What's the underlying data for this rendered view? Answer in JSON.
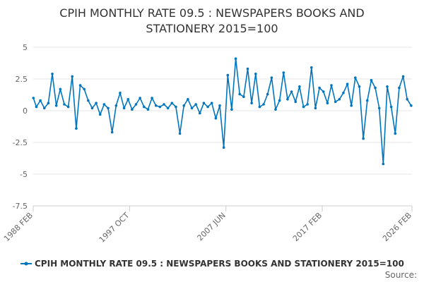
{
  "chart_data": {
    "type": "line",
    "title": "CPIH MONTHLY RATE 09.5 : NEWSPAPERS BOOKS AND STATIONERY 2015=100",
    "title_lines": [
      "CPIH MONTHLY RATE 09.5 : NEWSPAPERS BOOKS AND",
      "STATIONERY 2015=100"
    ],
    "xlabel": "",
    "ylabel": "",
    "ylim": [
      -7.5,
      5
    ],
    "yticks": [
      5,
      2.5,
      0,
      -2.5,
      -5,
      -7.5
    ],
    "ytick_labels": [
      "5",
      "2.5",
      "0",
      "-2.5",
      "-5",
      "-7.5"
    ],
    "xlim": [
      1988.0833,
      2026.0833
    ],
    "xticks": [
      {
        "label": "1988 FEB",
        "year": 1988.0833
      },
      {
        "label": "1997 OCT",
        "year": 1997.75
      },
      {
        "label": "2007 JUN",
        "year": 2007.4167
      },
      {
        "label": "2017 FEB",
        "year": 2017.0833
      },
      {
        "label": "2026 FEB",
        "year": 2026.0833
      }
    ],
    "grid": true,
    "legend_position": "bottom",
    "series": [
      {
        "name": "CPIH MONTHLY RATE 09.5 : NEWSPAPERS BOOKS AND STATIONERY 2015=100",
        "color": "#0075c0",
        "x": [
          1988.1,
          1988.4,
          1988.8,
          1989.2,
          1989.6,
          1990.0,
          1990.4,
          1990.8,
          1991.2,
          1991.6,
          1992.0,
          1992.4,
          1992.8,
          1993.2,
          1993.6,
          1994.0,
          1994.4,
          1994.8,
          1995.2,
          1995.6,
          1996.0,
          1996.4,
          1996.8,
          1997.2,
          1997.6,
          1998.0,
          1998.4,
          1998.8,
          1999.2,
          1999.6,
          2000.0,
          2000.4,
          2000.8,
          2001.2,
          2001.6,
          2002.0,
          2002.4,
          2002.8,
          2003.2,
          2003.6,
          2004.0,
          2004.4,
          2004.8,
          2005.2,
          2005.6,
          2006.0,
          2006.4,
          2006.8,
          2007.2,
          2007.6,
          2008.0,
          2008.4,
          2008.8,
          2009.2,
          2009.6,
          2010.0,
          2010.4,
          2010.8,
          2011.2,
          2011.6,
          2012.0,
          2012.4,
          2012.8,
          2013.2,
          2013.6,
          2014.0,
          2014.4,
          2014.8,
          2015.2,
          2015.6,
          2016.0,
          2016.4,
          2016.8,
          2017.2,
          2017.6,
          2018.0,
          2018.4,
          2018.8,
          2019.2,
          2019.6,
          2020.0,
          2020.4,
          2020.8,
          2021.2,
          2021.6,
          2022.0,
          2022.4,
          2022.8,
          2023.2,
          2023.6,
          2024.0,
          2024.4,
          2024.8,
          2025.2,
          2025.6,
          2026.0
        ],
        "values": [
          1.0,
          0.3,
          0.8,
          0.2,
          0.6,
          2.9,
          0.4,
          1.7,
          0.5,
          0.3,
          2.7,
          -1.4,
          2.0,
          1.7,
          0.8,
          0.2,
          0.6,
          -0.3,
          0.5,
          0.2,
          -1.7,
          0.4,
          1.4,
          0.2,
          0.9,
          0.1,
          0.5,
          1.0,
          0.3,
          0.1,
          1.0,
          0.4,
          0.3,
          0.5,
          0.2,
          0.6,
          0.3,
          -1.8,
          0.4,
          0.9,
          0.2,
          0.5,
          -0.2,
          0.6,
          0.3,
          0.6,
          -0.6,
          0.4,
          -2.9,
          2.8,
          0.1,
          4.1,
          1.3,
          1.1,
          3.3,
          0.6,
          2.9,
          0.3,
          0.5,
          1.3,
          2.6,
          0.1,
          0.8,
          3.0,
          0.9,
          1.5,
          0.7,
          1.9,
          0.3,
          0.5,
          3.4,
          0.2,
          1.8,
          1.5,
          0.6,
          2.0,
          0.7,
          0.9,
          1.4,
          2.1,
          0.4,
          2.6,
          1.9,
          -2.2,
          0.8,
          2.4,
          1.8,
          0.2,
          -4.2,
          1.9,
          0.3,
          -1.8,
          1.8,
          2.7,
          0.9,
          0.4
        ]
      }
    ]
  },
  "legend": {
    "label": "CPIH MONTHLY RATE 09.5 : NEWSPAPERS BOOKS AND STATIONERY 2015=100"
  },
  "footer": {
    "source_label": "Source:"
  }
}
